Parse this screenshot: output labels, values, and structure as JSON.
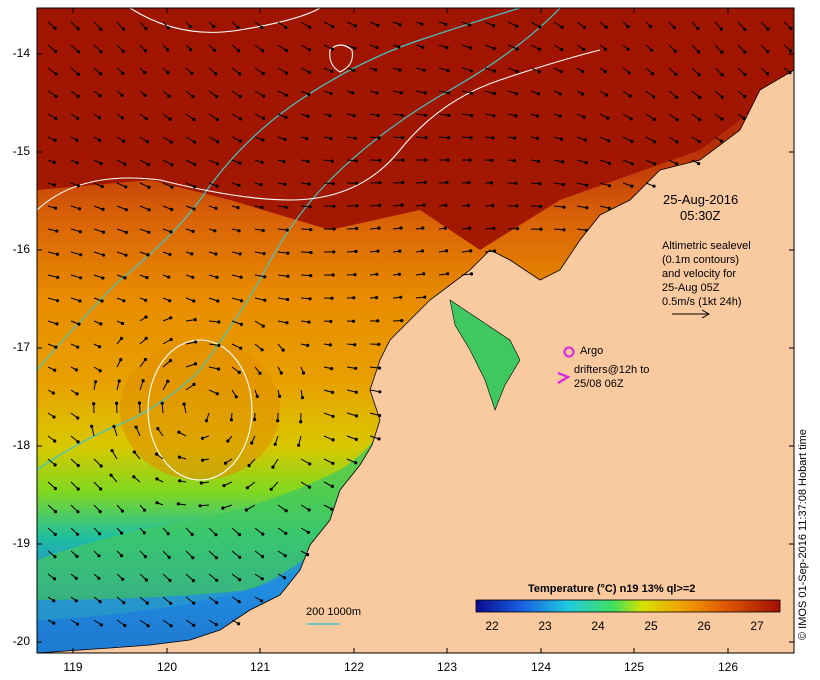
{
  "map": {
    "lat_ticks": [
      "-14",
      "-15",
      "-16",
      "-17",
      "-18",
      "-19",
      "-20"
    ],
    "lon_ticks": [
      "119",
      "120",
      "121",
      "122",
      "123",
      "124",
      "125",
      "126"
    ],
    "date_label": "25-Aug-2016",
    "time_label": "05:30Z",
    "altimetry_lines": [
      "Altimetric sealevel",
      "(0.1m contours)",
      "and velocity for",
      "25-Aug 05Z",
      "0.5m/s (1kt 24h)"
    ],
    "argo_label": "Argo",
    "drifter_lines": [
      "drifters@12h to",
      "25/08 06Z"
    ],
    "depth_legend": "200  1000m",
    "colorbar_title": "Temperature (°C) n19 13% ql>=2",
    "colorbar_ticks": [
      "22",
      "23",
      "24",
      "25",
      "26",
      "27"
    ],
    "credit": "© IMOS 01-Sep-2016 11:37:08 Hobart time",
    "colors": {
      "land": "#f9c9a0",
      "warm": "#a01800",
      "argo": "#e020e0",
      "contour": "#ffffff",
      "isobath": "#40c8c8"
    }
  }
}
